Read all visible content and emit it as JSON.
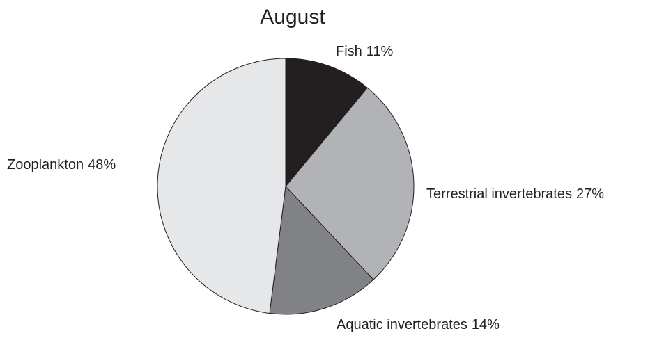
{
  "chart_data": {
    "type": "pie",
    "title": "August",
    "categories": [
      "Fish",
      "Terrestrial invertebrates",
      "Aquatic invertebrates",
      "Zooplankton"
    ],
    "values": [
      11,
      27,
      14,
      48
    ],
    "value_labels": [
      "11%",
      "27%",
      "14%",
      "48%"
    ],
    "colors": [
      "#231f20",
      "#b1b3b6",
      "#808285",
      "#e6e7e8"
    ]
  }
}
